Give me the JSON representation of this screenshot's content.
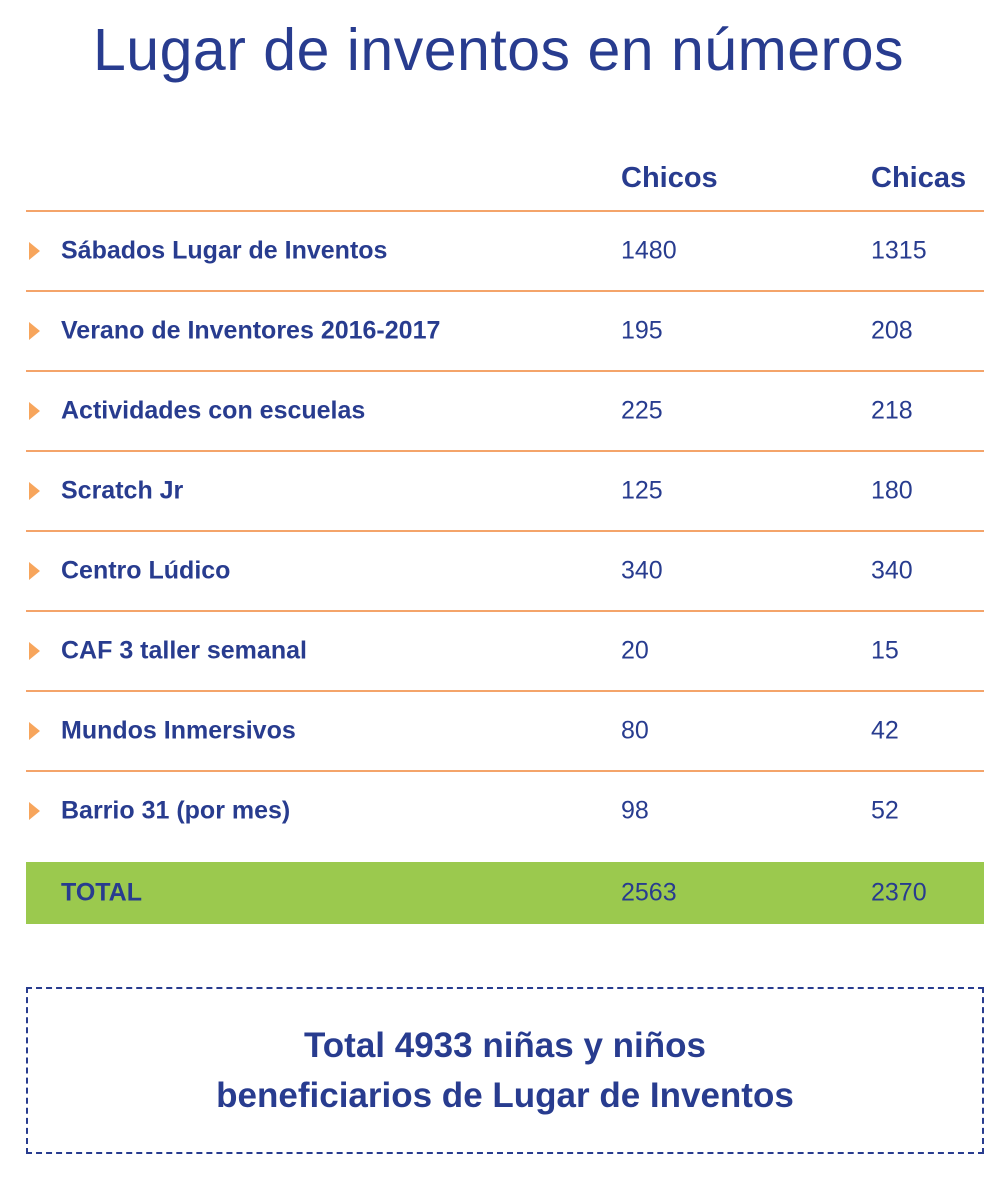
{
  "title": "Lugar de inventos en números",
  "table": {
    "headers": {
      "boys": "Chicos",
      "girls": "Chicas"
    },
    "rows": [
      {
        "label": "Sábados Lugar de Inventos",
        "boys": "1480",
        "girls": "1315"
      },
      {
        "label": "Verano de Inventores 2016-2017",
        "boys": "195",
        "girls": "208"
      },
      {
        "label": "Actividades con escuelas",
        "boys": "225",
        "girls": "218"
      },
      {
        "label": "Scratch Jr",
        "boys": "125",
        "girls": "180"
      },
      {
        "label": "Centro Lúdico",
        "boys": "340",
        "girls": "340"
      },
      {
        "label": "CAF 3 taller semanal",
        "boys": "20",
        "girls": "15"
      },
      {
        "label": "Mundos Inmersivos",
        "boys": "80",
        "girls": "42"
      },
      {
        "label": "Barrio 31 (por mes)",
        "boys": "98",
        "girls": "52"
      }
    ],
    "total": {
      "label": "TOTAL",
      "boys": "2563",
      "girls": "2370"
    }
  },
  "summary": {
    "line1": "Total 4933 niñas y niños",
    "line2": "beneficiarios de Lugar de Inventos"
  },
  "colors": {
    "text": "#283c8f",
    "divider": "#f4a46a",
    "arrow": "#f7a55c",
    "total_background": "#9bc94e"
  },
  "icons": {
    "row_bullet": "triangle-right-icon"
  }
}
